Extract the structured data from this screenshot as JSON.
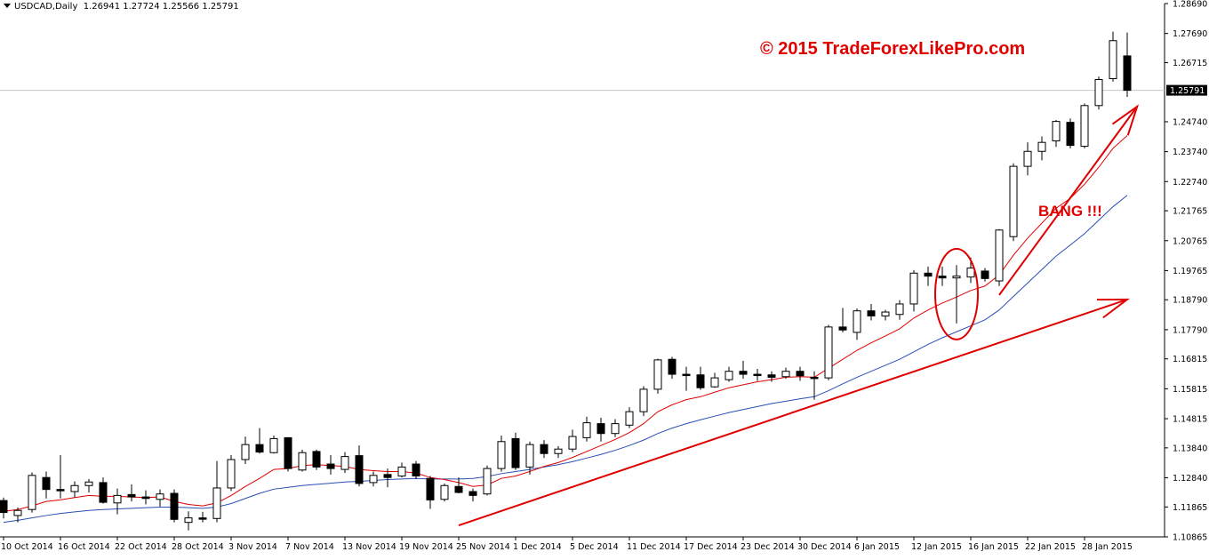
{
  "header": {
    "symbol": "USDCAD,Daily",
    "ohlc": "1.26941 1.27724 1.25566 1.25791"
  },
  "watermark": "© 2015 TradeForexLikePro.com",
  "annotation": "BANG !!!",
  "current_price_label": "1.25791",
  "colors": {
    "up_candle_body": "#ffffff",
    "down_candle_body": "#000000",
    "fast_ma": "#e00000",
    "slow_ma": "#2a4fb5",
    "annotation": "#e00000"
  },
  "chart_data": {
    "type": "candlestick",
    "symbol": "USDCAD",
    "timeframe": "Daily",
    "ylim": [
      1.10865,
      1.2869
    ],
    "y_ticks": [
      1.2869,
      1.2769,
      1.26715,
      1.25791,
      1.2474,
      1.2374,
      1.2274,
      1.21765,
      1.20765,
      1.19765,
      1.1879,
      1.1779,
      1.16815,
      1.15815,
      1.14815,
      1.1384,
      1.1284,
      1.11865,
      1.10865
    ],
    "x_tick_labels": [
      "10 Oct 2014",
      "16 Oct 2014",
      "22 Oct 2014",
      "28 Oct 2014",
      "3 Nov 2014",
      "7 Nov 2014",
      "13 Nov 2014",
      "19 Nov 2014",
      "25 Nov 2014",
      "1 Dec 2014",
      "5 Dec 2014",
      "11 Dec 2014",
      "17 Dec 2014",
      "23 Dec 2014",
      "30 Dec 2014",
      "6 Jan 2015",
      "12 Jan 2015",
      "16 Jan 2015",
      "22 Jan 2015",
      "28 Jan 2015"
    ],
    "x_tick_bar_index": [
      0,
      4,
      8,
      12,
      16,
      20,
      24,
      28,
      32,
      36,
      40,
      44,
      48,
      52,
      56,
      60,
      64,
      68,
      72,
      76
    ],
    "last_price": 1.25791,
    "candles": [
      [
        1.1208,
        1.1218,
        1.1148,
        1.1168
      ],
      [
        1.1158,
        1.1185,
        1.1135,
        1.1175
      ],
      [
        1.1178,
        1.1302,
        1.1168,
        1.1292
      ],
      [
        1.1285,
        1.1305,
        1.1215,
        1.1245
      ],
      [
        1.1245,
        1.136,
        1.1215,
        1.1242
      ],
      [
        1.1238,
        1.1272,
        1.1218,
        1.1258
      ],
      [
        1.1258,
        1.128,
        1.1235,
        1.127
      ],
      [
        1.1268,
        1.1285,
        1.1198,
        1.1202
      ],
      [
        1.12,
        1.1248,
        1.1162,
        1.1225
      ],
      [
        1.1228,
        1.1262,
        1.1205,
        1.122
      ],
      [
        1.122,
        1.1242,
        1.1195,
        1.1215
      ],
      [
        1.1212,
        1.1245,
        1.1188,
        1.123
      ],
      [
        1.1232,
        1.1245,
        1.1135,
        1.1145
      ],
      [
        1.1135,
        1.1172,
        1.1108,
        1.115
      ],
      [
        1.115,
        1.117,
        1.1135,
        1.1148
      ],
      [
        1.1148,
        1.134,
        1.1135,
        1.125
      ],
      [
        1.125,
        1.136,
        1.124,
        1.1345
      ],
      [
        1.1345,
        1.1422,
        1.133,
        1.1395
      ],
      [
        1.1395,
        1.145,
        1.1365,
        1.137
      ],
      [
        1.1368,
        1.1425,
        1.1365,
        1.1415
      ],
      [
        1.1418,
        1.142,
        1.1305,
        1.1315
      ],
      [
        1.131,
        1.1378,
        1.1305,
        1.1368
      ],
      [
        1.1372,
        1.1378,
        1.131,
        1.132
      ],
      [
        1.133,
        1.136,
        1.1295,
        1.1315
      ],
      [
        1.1312,
        1.137,
        1.13,
        1.1355
      ],
      [
        1.1358,
        1.1392,
        1.1255,
        1.1265
      ],
      [
        1.1268,
        1.1305,
        1.1255,
        1.1292
      ],
      [
        1.1295,
        1.1315,
        1.1252,
        1.1285
      ],
      [
        1.129,
        1.1335,
        1.1285,
        1.132
      ],
      [
        1.133,
        1.134,
        1.128,
        1.129
      ],
      [
        1.1282,
        1.129,
        1.118,
        1.121
      ],
      [
        1.1212,
        1.1265,
        1.1205,
        1.1258
      ],
      [
        1.1255,
        1.1285,
        1.1232,
        1.1235
      ],
      [
        1.1238,
        1.1248,
        1.1205,
        1.1225
      ],
      [
        1.123,
        1.1325,
        1.1225,
        1.1315
      ],
      [
        1.1315,
        1.1425,
        1.1305,
        1.1405
      ],
      [
        1.1415,
        1.1435,
        1.131,
        1.1318
      ],
      [
        1.132,
        1.1405,
        1.1295,
        1.1395
      ],
      [
        1.1395,
        1.141,
        1.135,
        1.1365
      ],
      [
        1.1365,
        1.139,
        1.135,
        1.138
      ],
      [
        1.138,
        1.1445,
        1.137,
        1.1422
      ],
      [
        1.1418,
        1.1488,
        1.1405,
        1.1468
      ],
      [
        1.1465,
        1.1485,
        1.1405,
        1.1432
      ],
      [
        1.1432,
        1.148,
        1.142,
        1.1465
      ],
      [
        1.146,
        1.152,
        1.145,
        1.1505
      ],
      [
        1.1505,
        1.159,
        1.149,
        1.158
      ],
      [
        1.158,
        1.1682,
        1.1565,
        1.1678
      ],
      [
        1.168,
        1.1688,
        1.1615,
        1.163
      ],
      [
        1.163,
        1.1655,
        1.1575,
        1.1628
      ],
      [
        1.1628,
        1.1655,
        1.1578,
        1.1585
      ],
      [
        1.1588,
        1.1635,
        1.1585,
        1.1618
      ],
      [
        1.1612,
        1.1655,
        1.1605,
        1.164
      ],
      [
        1.164,
        1.1675,
        1.1615,
        1.163
      ],
      [
        1.163,
        1.1648,
        1.1608,
        1.1628
      ],
      [
        1.1628,
        1.164,
        1.1605,
        1.162
      ],
      [
        1.1622,
        1.1652,
        1.1615,
        1.164
      ],
      [
        1.164,
        1.1655,
        1.1608,
        1.1625
      ],
      [
        1.162,
        1.164,
        1.1545,
        1.1618
      ],
      [
        1.1618,
        1.1795,
        1.161,
        1.1788
      ],
      [
        1.1788,
        1.1852,
        1.177,
        1.1778
      ],
      [
        1.177,
        1.185,
        1.1745,
        1.1842
      ],
      [
        1.1842,
        1.1865,
        1.181,
        1.1825
      ],
      [
        1.1825,
        1.1845,
        1.181,
        1.1838
      ],
      [
        1.183,
        1.1878,
        1.1812,
        1.1865
      ],
      [
        1.1865,
        1.1978,
        1.184,
        1.1968
      ],
      [
        1.1968,
        1.199,
        1.1925,
        1.1958
      ],
      [
        1.1958,
        1.199,
        1.1925,
        1.1952
      ],
      [
        1.1952,
        1.1995,
        1.18,
        1.1958
      ],
      [
        1.1955,
        1.202,
        1.1935,
        1.1985
      ],
      [
        1.1975,
        1.1985,
        1.194,
        1.195
      ],
      [
        1.1942,
        1.2115,
        1.1925,
        1.2112
      ],
      [
        1.209,
        1.2335,
        1.2075,
        1.2325
      ],
      [
        1.2325,
        1.2405,
        1.2295,
        1.2375
      ],
      [
        1.2375,
        1.2425,
        1.2345,
        1.2405
      ],
      [
        1.241,
        1.248,
        1.239,
        1.2475
      ],
      [
        1.2472,
        1.2485,
        1.2385,
        1.2395
      ],
      [
        1.2392,
        1.2535,
        1.2385,
        1.2528
      ],
      [
        1.2528,
        1.2625,
        1.2515,
        1.2615
      ],
      [
        1.2618,
        1.2775,
        1.2608,
        1.2745
      ],
      [
        1.2694,
        1.2772,
        1.2557,
        1.2579
      ]
    ],
    "fast_ma": [
      1.1172,
      1.1178,
      1.119,
      1.1205,
      1.121,
      1.1218,
      1.1225,
      1.1222,
      1.1222,
      1.122,
      1.1218,
      1.122,
      1.1205,
      1.1195,
      1.119,
      1.12,
      1.1225,
      1.1255,
      1.1282,
      1.1312,
      1.1315,
      1.1325,
      1.1328,
      1.1325,
      1.1322,
      1.1312,
      1.1308,
      1.1305,
      1.1305,
      1.13,
      1.1285,
      1.1278,
      1.1268,
      1.1255,
      1.126,
      1.1282,
      1.129,
      1.1305,
      1.1322,
      1.1335,
      1.1352,
      1.1372,
      1.1392,
      1.1412,
      1.1435,
      1.1465,
      1.1505,
      1.1528,
      1.1545,
      1.1555,
      1.157,
      1.1585,
      1.1595,
      1.1605,
      1.1612,
      1.162,
      1.1622,
      1.162,
      1.165,
      1.168,
      1.171,
      1.1735,
      1.1758,
      1.1782,
      1.1818,
      1.1845,
      1.1868,
      1.1888,
      1.191,
      1.1925,
      1.1962,
      1.2028,
      1.2085,
      1.2135,
      1.2185,
      1.2218,
      1.2265,
      1.2322,
      1.2385,
      1.2428
    ],
    "slow_ma": [
      1.1135,
      1.1142,
      1.115,
      1.1158,
      1.1165,
      1.117,
      1.1175,
      1.1178,
      1.118,
      1.1182,
      1.1184,
      1.1186,
      1.1186,
      1.1184,
      1.1182,
      1.1186,
      1.1198,
      1.1215,
      1.1232,
      1.1246,
      1.1252,
      1.1258,
      1.1262,
      1.1266,
      1.127,
      1.1272,
      1.1275,
      1.1278,
      1.128,
      1.1282,
      1.128,
      1.128,
      1.128,
      1.1282,
      1.1288,
      1.1298,
      1.1305,
      1.1312,
      1.132,
      1.1328,
      1.1338,
      1.135,
      1.1362,
      1.1376,
      1.1392,
      1.141,
      1.1432,
      1.145,
      1.1465,
      1.1478,
      1.149,
      1.1502,
      1.1512,
      1.1522,
      1.1532,
      1.154,
      1.1548,
      1.1555,
      1.1575,
      1.1598,
      1.162,
      1.164,
      1.166,
      1.168,
      1.1705,
      1.173,
      1.1752,
      1.1772,
      1.1792,
      1.1812,
      1.1845,
      1.189,
      1.1935,
      1.198,
      1.2025,
      1.2062,
      1.21,
      1.2145,
      1.219,
      1.2228
    ]
  }
}
